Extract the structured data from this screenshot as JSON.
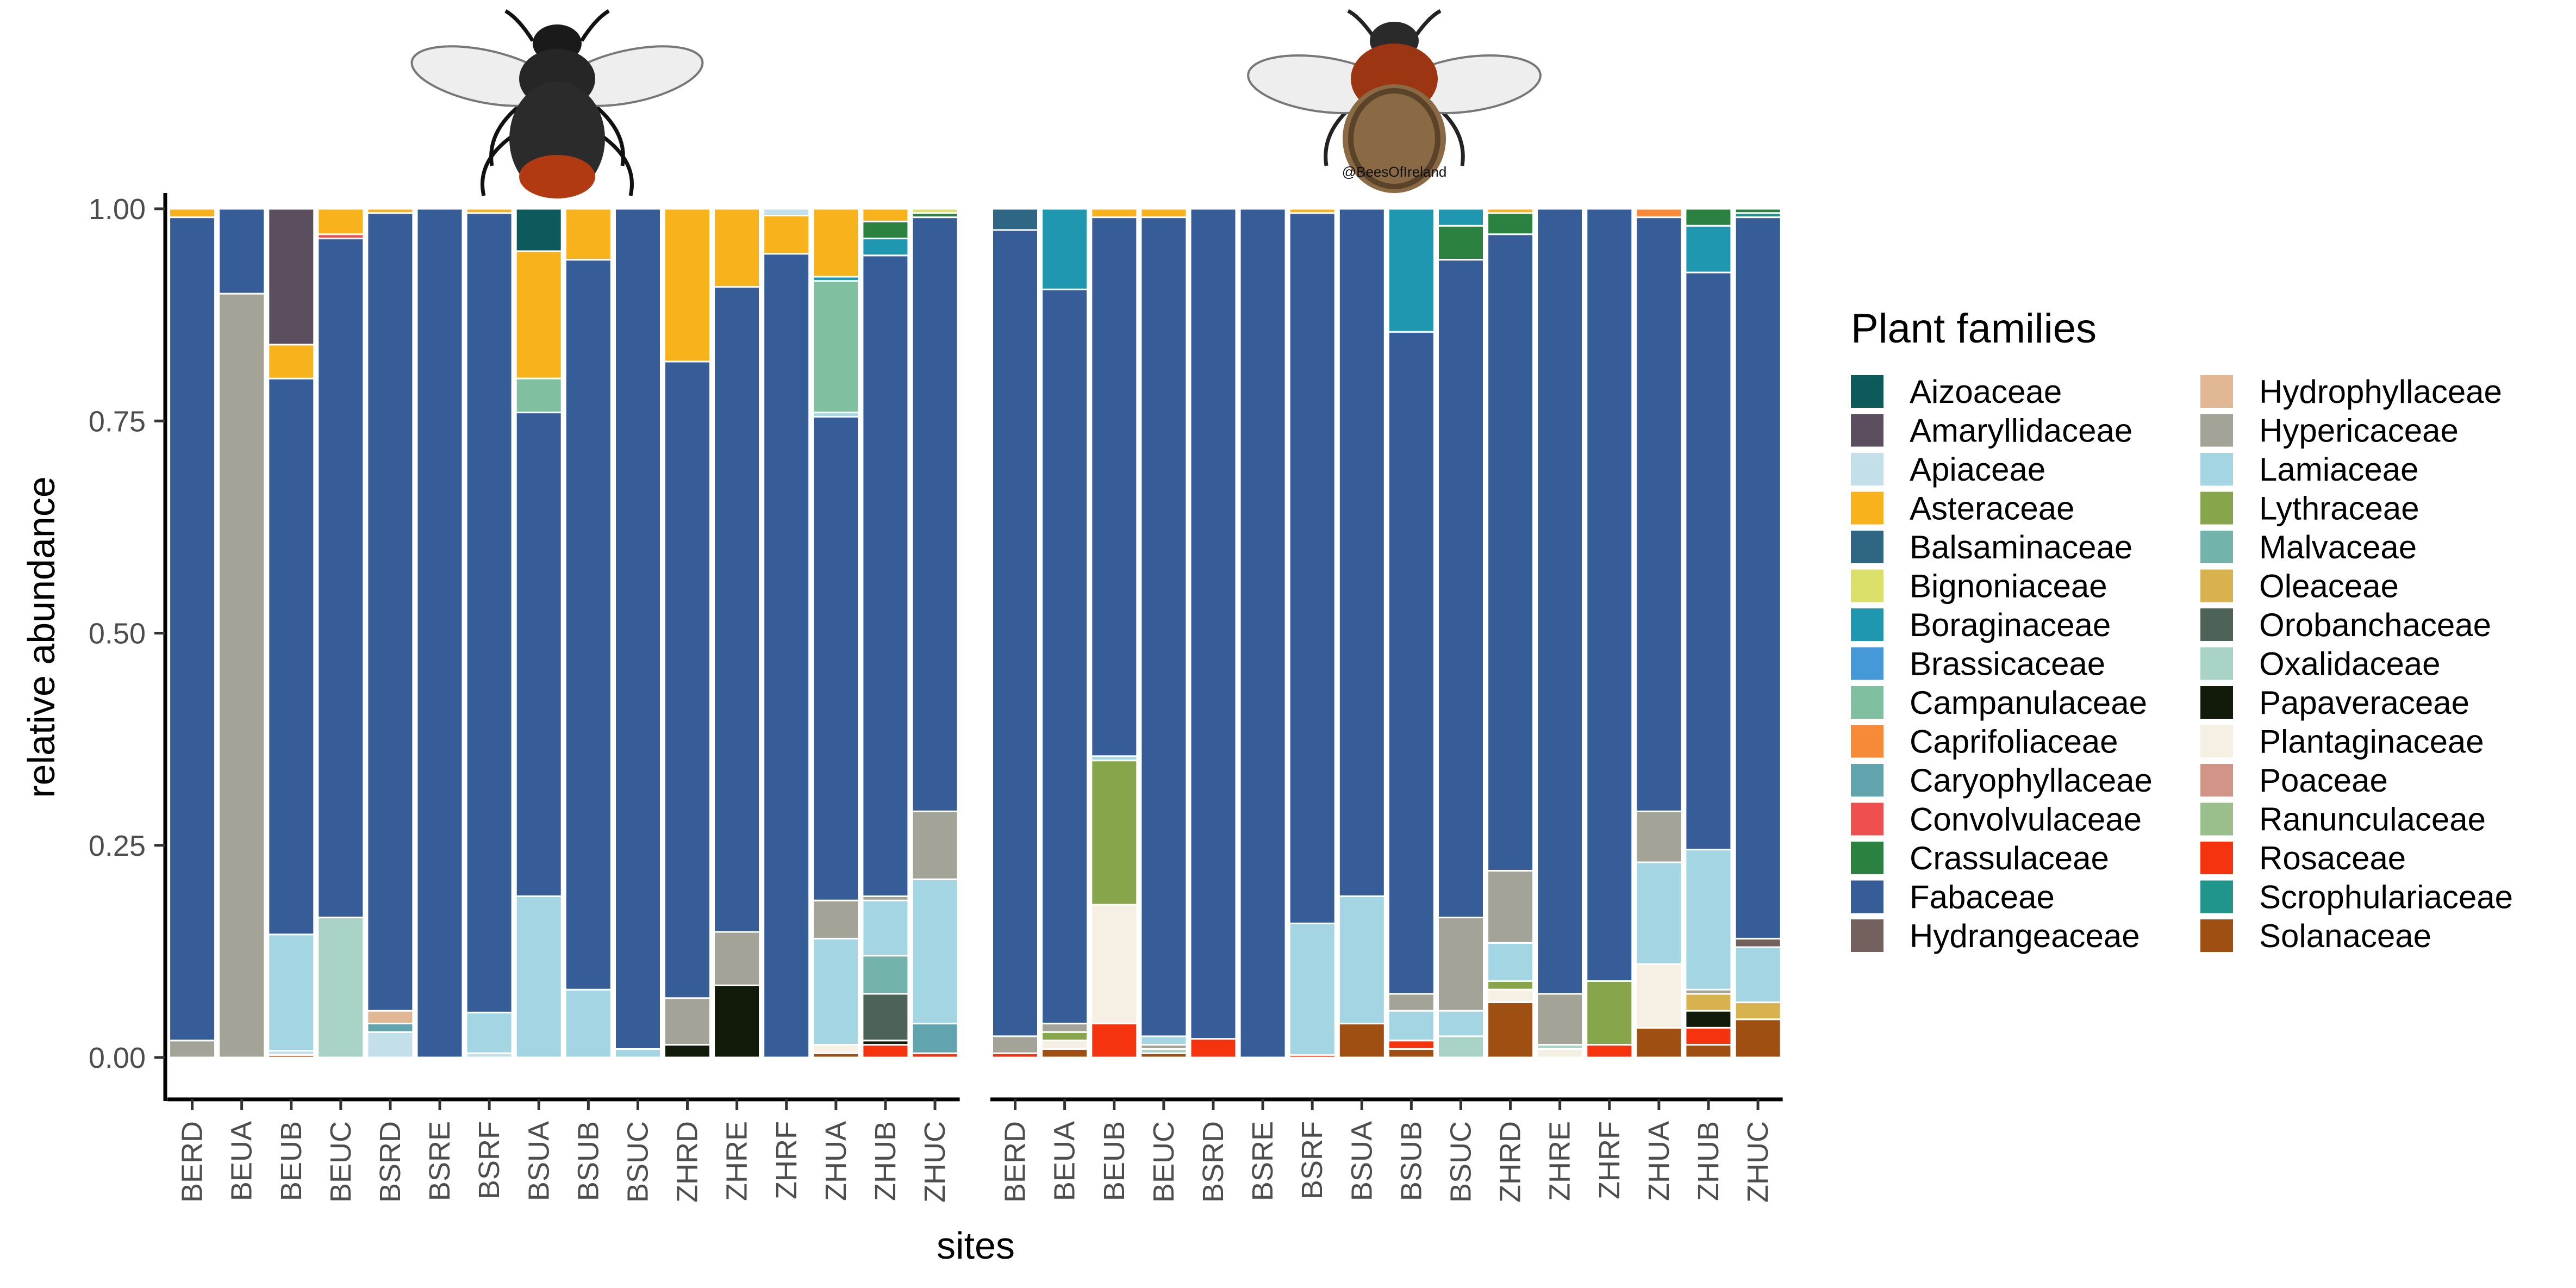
{
  "chart_data": {
    "type": "bar",
    "stacked": true,
    "xlabel": "sites",
    "ylabel": "relative abundance",
    "ylim": [
      0,
      1
    ],
    "yticks": [
      0.0,
      0.25,
      0.5,
      0.75,
      1.0
    ],
    "ytick_labels": [
      "0.00",
      "0.25",
      "0.50",
      "0.75",
      "1.00"
    ],
    "legend_title": "Plant families",
    "legend_position": "right",
    "categories": [
      "BERD",
      "BEUA",
      "BEUB",
      "BEUC",
      "BSRD",
      "BSRE",
      "BSRF",
      "BSUA",
      "BSUB",
      "BSUC",
      "ZHRD",
      "ZHRE",
      "ZHRF",
      "ZHUA",
      "ZHUB",
      "ZHUC"
    ],
    "families": [
      {
        "name": "Aizoaceae",
        "color": "#0c5a5c"
      },
      {
        "name": "Amaryllidaceae",
        "color": "#5b4f5f"
      },
      {
        "name": "Apiaceae",
        "color": "#c3dfe9"
      },
      {
        "name": "Asteraceae",
        "color": "#f8b21c"
      },
      {
        "name": "Balsaminaceae",
        "color": "#2f6683"
      },
      {
        "name": "Bignoniaceae",
        "color": "#dbe06b"
      },
      {
        "name": "Boraginaceae",
        "color": "#1f97b1"
      },
      {
        "name": "Brassicaceae",
        "color": "#4699d9"
      },
      {
        "name": "Campanulaceae",
        "color": "#80bfa0"
      },
      {
        "name": "Caprifoliaceae",
        "color": "#f68a38"
      },
      {
        "name": "Caryophyllaceae",
        "color": "#62a4ad"
      },
      {
        "name": "Convolvulaceae",
        "color": "#ef4f4f"
      },
      {
        "name": "Crassulaceae",
        "color": "#2b8240"
      },
      {
        "name": "Fabaceae",
        "color": "#375d99"
      },
      {
        "name": "Hydrangeaceae",
        "color": "#74615e"
      },
      {
        "name": "Hydrophyllaceae",
        "color": "#e2b894"
      },
      {
        "name": "Hypericaceae",
        "color": "#a3a398"
      },
      {
        "name": "Lamiaceae",
        "color": "#a4d5e3"
      },
      {
        "name": "Lythraceae",
        "color": "#87a64c"
      },
      {
        "name": "Malvaceae",
        "color": "#73b3ac"
      },
      {
        "name": "Oleaceae",
        "color": "#d8b24f"
      },
      {
        "name": "Orobanchaceae",
        "color": "#4e6357"
      },
      {
        "name": "Oxalidaceae",
        "color": "#a9d3c6"
      },
      {
        "name": "Papaveraceae",
        "color": "#121a0a"
      },
      {
        "name": "Plantaginaceae",
        "color": "#f5efe4"
      },
      {
        "name": "Poaceae",
        "color": "#d39488"
      },
      {
        "name": "Ranunculaceae",
        "color": "#9abf8c"
      },
      {
        "name": "Rosaceae",
        "color": "#f6330f"
      },
      {
        "name": "Scrophulariaceae",
        "color": "#20958c"
      },
      {
        "name": "Solanaceae",
        "color": "#a04f13"
      }
    ],
    "panels": [
      {
        "name": "",
        "bars": [
          [
            [
              "Hypericaceae",
              0.02
            ],
            [
              "Fabaceae",
              0.97
            ],
            [
              "Asteraceae",
              0.01
            ]
          ],
          [
            [
              "Hypericaceae",
              0.9
            ],
            [
              "Fabaceae",
              0.1
            ]
          ],
          [
            [
              "Solanaceae",
              0.003
            ],
            [
              "Apiaceae",
              0.005
            ],
            [
              "Lamiaceae",
              0.137
            ],
            [
              "Fabaceae",
              0.655
            ],
            [
              "Asteraceae",
              0.04
            ],
            [
              "Amaryllidaceae",
              0.16
            ]
          ],
          [
            [
              "Oxalidaceae",
              0.165
            ],
            [
              "Fabaceae",
              0.8
            ],
            [
              "Convolvulaceae",
              0.005
            ],
            [
              "Asteraceae",
              0.03
            ]
          ],
          [
            [
              "Apiaceae",
              0.03
            ],
            [
              "Caryophyllaceae",
              0.01
            ],
            [
              "Hydrophyllaceae",
              0.015
            ],
            [
              "Fabaceae",
              0.94
            ],
            [
              "Asteraceae",
              0.005
            ]
          ],
          [
            [
              "Fabaceae",
              1.0
            ]
          ],
          [
            [
              "Apiaceae",
              0.005
            ],
            [
              "Lamiaceae",
              0.048
            ],
            [
              "Fabaceae",
              0.942
            ],
            [
              "Asteraceae",
              0.005
            ]
          ],
          [
            [
              "Lamiaceae",
              0.19
            ],
            [
              "Fabaceae",
              0.57
            ],
            [
              "Campanulaceae",
              0.04
            ],
            [
              "Asteraceae",
              0.15
            ],
            [
              "Aizoaceae",
              0.05
            ]
          ],
          [
            [
              "Lamiaceae",
              0.08
            ],
            [
              "Fabaceae",
              0.86
            ],
            [
              "Asteraceae",
              0.06
            ]
          ],
          [
            [
              "Lamiaceae",
              0.01
            ],
            [
              "Fabaceae",
              0.99
            ]
          ],
          [
            [
              "Papaveraceae",
              0.015
            ],
            [
              "Hypericaceae",
              0.055
            ],
            [
              "Fabaceae",
              0.75
            ],
            [
              "Asteraceae",
              0.18
            ]
          ],
          [
            [
              "Papaveraceae",
              0.085
            ],
            [
              "Hypericaceae",
              0.063
            ],
            [
              "Fabaceae",
              0.76
            ],
            [
              "Asteraceae",
              0.092
            ]
          ],
          [
            [
              "Fabaceae",
              0.947
            ],
            [
              "Asteraceae",
              0.045
            ],
            [
              "Apiaceae",
              0.008
            ]
          ],
          [
            [
              "Solanaceae",
              0.005
            ],
            [
              "Plantaginaceae",
              0.01
            ],
            [
              "Lamiaceae",
              0.125
            ],
            [
              "Hypericaceae",
              0.045
            ],
            [
              "Fabaceae",
              0.57
            ],
            [
              "Lamiaceae",
              0.005
            ],
            [
              "Campanulaceae",
              0.155
            ],
            [
              "Boraginaceae",
              0.005
            ],
            [
              "Asteraceae",
              0.08
            ]
          ],
          [
            [
              "Rosaceae",
              0.015
            ],
            [
              "Papaveraceae",
              0.005
            ],
            [
              "Orobanchaceae",
              0.055
            ],
            [
              "Malvaceae",
              0.045
            ],
            [
              "Lamiaceae",
              0.065
            ],
            [
              "Hypericaceae",
              0.005
            ],
            [
              "Fabaceae",
              0.755
            ],
            [
              "Boraginaceae",
              0.02
            ],
            [
              "Crassulaceae",
              0.02
            ],
            [
              "Asteraceae",
              0.015
            ]
          ],
          [
            [
              "Rosaceae",
              0.005
            ],
            [
              "Caryophyllaceae",
              0.035
            ],
            [
              "Lamiaceae",
              0.17
            ],
            [
              "Hypericaceae",
              0.08
            ],
            [
              "Fabaceae",
              0.7
            ],
            [
              "Crassulaceae",
              0.005
            ],
            [
              "Bignoniaceae",
              0.005
            ]
          ]
        ]
      },
      {
        "name": "",
        "bars": [
          [
            [
              "Rosaceae",
              0.005
            ],
            [
              "Hypericaceae",
              0.02
            ],
            [
              "Fabaceae",
              0.95
            ],
            [
              "Balsaminaceae",
              0.025
            ]
          ],
          [
            [
              "Solanaceae",
              0.01
            ],
            [
              "Plantaginaceae",
              0.01
            ],
            [
              "Lythraceae",
              0.01
            ],
            [
              "Hypericaceae",
              0.01
            ],
            [
              "Fabaceae",
              0.865
            ],
            [
              "Boraginaceae",
              0.095
            ]
          ],
          [
            [
              "Rosaceae",
              0.04
            ],
            [
              "Plantaginaceae",
              0.14
            ],
            [
              "Lythraceae",
              0.17
            ],
            [
              "Lamiaceae",
              0.005
            ],
            [
              "Fabaceae",
              0.635
            ],
            [
              "Asteraceae",
              0.01
            ]
          ],
          [
            [
              "Solanaceae",
              0.005
            ],
            [
              "Oxalidaceae",
              0.005
            ],
            [
              "Hypericaceae",
              0.005
            ],
            [
              "Lamiaceae",
              0.01
            ],
            [
              "Fabaceae",
              0.965
            ],
            [
              "Asteraceae",
              0.01
            ]
          ],
          [
            [
              "Rosaceae",
              0.022
            ],
            [
              "Fabaceae",
              0.978
            ]
          ],
          [
            [
              "Fabaceae",
              1.0
            ]
          ],
          [
            [
              "Rosaceae",
              0.003
            ],
            [
              "Lamiaceae",
              0.155
            ],
            [
              "Fabaceae",
              0.837
            ],
            [
              "Asteraceae",
              0.005
            ]
          ],
          [
            [
              "Solanaceae",
              0.04
            ],
            [
              "Lamiaceae",
              0.15
            ],
            [
              "Fabaceae",
              0.81
            ]
          ],
          [
            [
              "Solanaceae",
              0.01
            ],
            [
              "Rosaceae",
              0.01
            ],
            [
              "Lamiaceae",
              0.035
            ],
            [
              "Hypericaceae",
              0.02
            ],
            [
              "Fabaceae",
              0.78
            ],
            [
              "Boraginaceae",
              0.145
            ]
          ],
          [
            [
              "Oxalidaceae",
              0.025
            ],
            [
              "Lamiaceae",
              0.03
            ],
            [
              "Hypericaceae",
              0.11
            ],
            [
              "Fabaceae",
              0.775
            ],
            [
              "Crassulaceae",
              0.04
            ],
            [
              "Boraginaceae",
              0.02
            ]
          ],
          [
            [
              "Solanaceae",
              0.065
            ],
            [
              "Plantaginaceae",
              0.015
            ],
            [
              "Lythraceae",
              0.01
            ],
            [
              "Lamiaceae",
              0.045
            ],
            [
              "Hypericaceae",
              0.085
            ],
            [
              "Fabaceae",
              0.75
            ],
            [
              "Crassulaceae",
              0.025
            ],
            [
              "Asteraceae",
              0.005
            ]
          ],
          [
            [
              "Plantaginaceae",
              0.01
            ],
            [
              "Oxalidaceae",
              0.005
            ],
            [
              "Hypericaceae",
              0.06
            ],
            [
              "Fabaceae",
              0.925
            ]
          ],
          [
            [
              "Rosaceae",
              0.015
            ],
            [
              "Lythraceae",
              0.075
            ],
            [
              "Fabaceae",
              0.91
            ]
          ],
          [
            [
              "Solanaceae",
              0.035
            ],
            [
              "Plantaginaceae",
              0.075
            ],
            [
              "Lamiaceae",
              0.12
            ],
            [
              "Hypericaceae",
              0.06
            ],
            [
              "Fabaceae",
              0.7
            ],
            [
              "Caprifoliaceae",
              0.01
            ]
          ],
          [
            [
              "Solanaceae",
              0.015
            ],
            [
              "Rosaceae",
              0.02
            ],
            [
              "Papaveraceae",
              0.02
            ],
            [
              "Oleaceae",
              0.02
            ],
            [
              "Hypericaceae",
              0.005
            ],
            [
              "Lamiaceae",
              0.165
            ],
            [
              "Fabaceae",
              0.68
            ],
            [
              "Boraginaceae",
              0.055
            ],
            [
              "Crassulaceae",
              0.02
            ]
          ],
          [
            [
              "Solanaceae",
              0.045
            ],
            [
              "Oleaceae",
              0.02
            ],
            [
              "Lamiaceae",
              0.065
            ],
            [
              "Hydrangeaceae",
              0.01
            ],
            [
              "Fabaceae",
              0.85
            ],
            [
              "Scrophulariaceae",
              0.005
            ],
            [
              "Crassulaceae",
              0.005
            ]
          ]
        ]
      }
    ]
  },
  "image_credit": "@BeesOfIreland"
}
